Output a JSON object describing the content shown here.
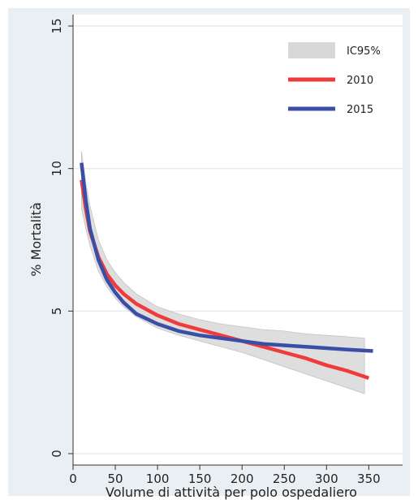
{
  "chart_data": {
    "type": "line",
    "xlabel": "Volume di attività per polo ospedaliero",
    "ylabel": "% Mortalità",
    "xlim": [
      0,
      390
    ],
    "ylim": [
      -0.4,
      15.4
    ],
    "x_ticks": [
      0,
      50,
      100,
      150,
      200,
      250,
      300,
      350
    ],
    "y_ticks": [
      0,
      5,
      10,
      15
    ],
    "grid": "horizontal",
    "legend_position": "top-right",
    "colors": {
      "outer_background": "#e9eff3",
      "plot_background": "#ffffff",
      "ci_band": "#d8d8d8",
      "series_2010": "#ef3b3b",
      "series_2015": "#3a4ea8",
      "gridline": "#e3ecef"
    },
    "legend": [
      {
        "label": "IC95%",
        "kind": "band",
        "color": "#d8d8d8"
      },
      {
        "label": "2010",
        "kind": "line",
        "color": "#ef3b3b"
      },
      {
        "label": "2015",
        "kind": "line",
        "color": "#3a4ea8"
      }
    ],
    "series": [
      {
        "name": "2010",
        "x": [
          10,
          15,
          20,
          30,
          40,
          50,
          60,
          75,
          100,
          125,
          150,
          175,
          200,
          225,
          250,
          275,
          300,
          325,
          350
        ],
        "y": [
          9.6,
          8.6,
          7.8,
          6.9,
          6.3,
          5.9,
          5.6,
          5.25,
          4.85,
          4.55,
          4.35,
          4.15,
          3.95,
          3.75,
          3.55,
          3.35,
          3.1,
          2.9,
          2.65
        ]
      },
      {
        "name": "2015",
        "x": [
          10,
          15,
          20,
          30,
          40,
          50,
          60,
          75,
          100,
          125,
          150,
          175,
          200,
          225,
          250,
          275,
          300,
          325,
          355
        ],
        "y": [
          10.2,
          8.9,
          7.9,
          6.8,
          6.1,
          5.65,
          5.3,
          4.9,
          4.55,
          4.3,
          4.15,
          4.05,
          3.95,
          3.85,
          3.8,
          3.75,
          3.7,
          3.65,
          3.6
        ]
      }
    ],
    "ci_band": {
      "name": "IC95%",
      "x": [
        10,
        15,
        20,
        30,
        40,
        50,
        60,
        75,
        100,
        125,
        150,
        175,
        200,
        225,
        250,
        275,
        300,
        325,
        345
      ],
      "upper": [
        10.6,
        9.5,
        8.7,
        7.5,
        6.8,
        6.35,
        6.0,
        5.6,
        5.15,
        4.9,
        4.7,
        4.55,
        4.45,
        4.35,
        4.3,
        4.2,
        4.15,
        4.1,
        4.05
      ],
      "lower": [
        8.6,
        7.9,
        7.3,
        6.4,
        5.85,
        5.45,
        5.15,
        4.8,
        4.4,
        4.15,
        3.95,
        3.75,
        3.55,
        3.3,
        3.05,
        2.8,
        2.55,
        2.3,
        2.1
      ]
    }
  }
}
